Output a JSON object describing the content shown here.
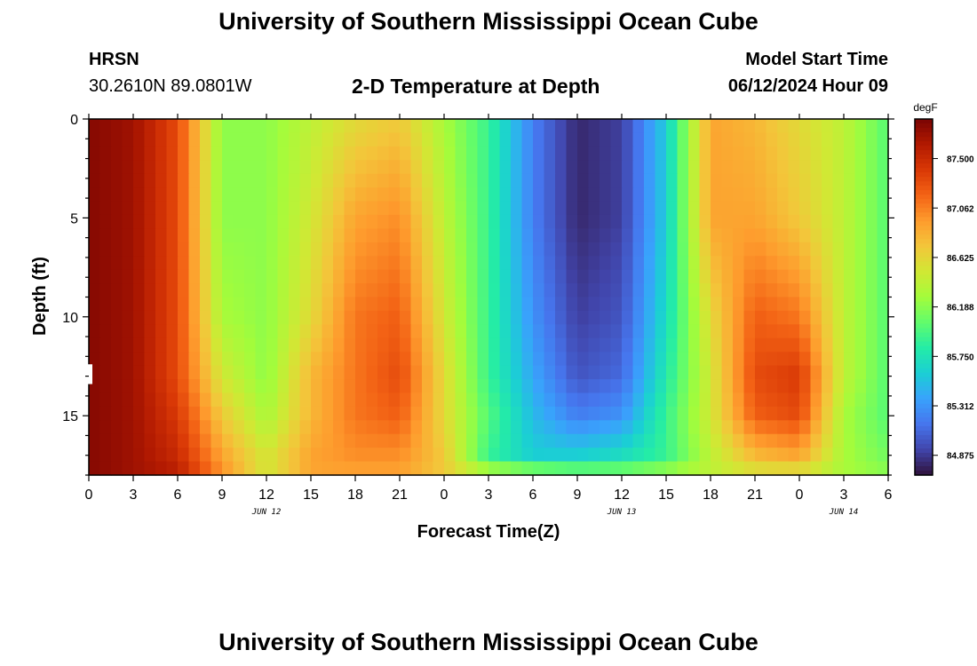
{
  "header": {
    "title": "University of Southern Mississippi Ocean Cube",
    "station": "HRSN",
    "coordinates": "30.2610N  89.0801W",
    "subtitle": "2-D Temperature at Depth",
    "model_start_label": "Model Start Time",
    "model_start_value": "06/12/2024 Hour 09"
  },
  "footer": {
    "title": "University of Southern Mississippi Ocean Cube"
  },
  "chart_data": {
    "type": "heatmap",
    "title": "2-D Temperature at Depth",
    "xlabel": "Forecast Time(Z)",
    "ylabel": "Depth (ft)",
    "x_hours_range": [
      0,
      54
    ],
    "x_tick_labels": [
      "0",
      "3",
      "6",
      "9",
      "12",
      "15",
      "18",
      "21",
      "0",
      "3",
      "6",
      "9",
      "12",
      "15",
      "18",
      "21",
      "0",
      "3",
      "6"
    ],
    "date_labels": [
      {
        "label": "JUN 12",
        "hour": 12
      },
      {
        "label": "JUN 13",
        "hour": 36
      },
      {
        "label": "JUN 14",
        "hour": 51
      }
    ],
    "y_range": [
      0,
      18
    ],
    "y_tick_labels": [
      "0",
      "5",
      "10",
      "15"
    ],
    "y_tick_values": [
      0,
      5,
      10,
      15
    ],
    "colorbar": {
      "unit": "degF",
      "range": [
        84.7,
        87.85
      ],
      "tick_labels": [
        "87.500",
        "87.062",
        "86.625",
        "86.188",
        "85.750",
        "85.312",
        "84.875"
      ],
      "tick_values": [
        87.5,
        87.0625,
        86.625,
        86.1875,
        85.75,
        85.3125,
        84.875
      ]
    },
    "colormap": [
      "#30123b",
      "#4145ab",
      "#4675ed",
      "#39a2fc",
      "#1bcfd4",
      "#24eca6",
      "#61fc6c",
      "#a4fc3b",
      "#d1e834",
      "#f3c63a",
      "#fe9b2d",
      "#f36315",
      "#d93806",
      "#b11901",
      "#7a0403"
    ],
    "grid_hours": [
      0,
      3,
      6,
      9,
      12,
      15,
      18,
      21,
      24,
      27,
      30,
      33,
      36,
      39,
      42,
      45,
      48,
      51,
      54
    ],
    "grid_depths": [
      0,
      5,
      10,
      13,
      15,
      17,
      18
    ],
    "temperature_degF": [
      [
        87.8,
        87.7,
        87.3,
        86.2,
        86.2,
        86.4,
        86.6,
        86.7,
        86.3,
        85.9,
        85.2,
        84.8,
        84.9,
        85.6,
        86.9,
        86.8,
        86.6,
        86.4,
        86.0
      ],
      [
        87.8,
        87.7,
        87.3,
        86.2,
        86.2,
        86.5,
        86.9,
        87.0,
        86.4,
        85.9,
        85.2,
        84.8,
        84.9,
        85.6,
        86.9,
        86.9,
        86.7,
        86.4,
        86.0
      ],
      [
        87.8,
        87.7,
        87.3,
        86.3,
        86.2,
        86.6,
        87.1,
        87.2,
        86.5,
        85.9,
        85.3,
        84.9,
        85.0,
        85.7,
        86.6,
        87.2,
        87.1,
        86.4,
        86.0
      ],
      [
        87.8,
        87.7,
        87.3,
        86.5,
        86.2,
        86.8,
        87.1,
        87.3,
        86.6,
        85.9,
        85.4,
        85.0,
        85.1,
        85.8,
        86.5,
        87.3,
        87.4,
        86.4,
        86.0
      ],
      [
        87.8,
        87.7,
        87.4,
        86.7,
        86.3,
        86.8,
        87.1,
        87.2,
        86.6,
        86.0,
        85.5,
        85.2,
        85.3,
        85.9,
        86.5,
        87.2,
        87.3,
        86.3,
        86.0
      ],
      [
        87.8,
        87.7,
        87.5,
        86.9,
        86.5,
        86.9,
        87.0,
        87.0,
        86.7,
        85.9,
        85.6,
        85.6,
        85.7,
        85.9,
        86.4,
        86.8,
        86.9,
        86.3,
        86.1
      ],
      [
        87.8,
        87.7,
        87.6,
        87.0,
        86.5,
        86.9,
        86.9,
        86.9,
        86.7,
        86.4,
        86.3,
        86.2,
        86.2,
        86.3,
        86.4,
        86.5,
        86.5,
        86.3,
        86.2
      ]
    ]
  }
}
